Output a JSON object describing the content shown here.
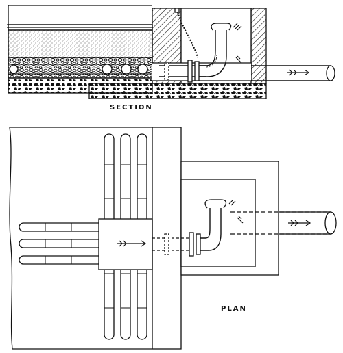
{
  "labels": {
    "section": "SECTION",
    "plan": "PLAN"
  },
  "colors": {
    "ink": "#111111",
    "paper": "#ffffff"
  }
}
